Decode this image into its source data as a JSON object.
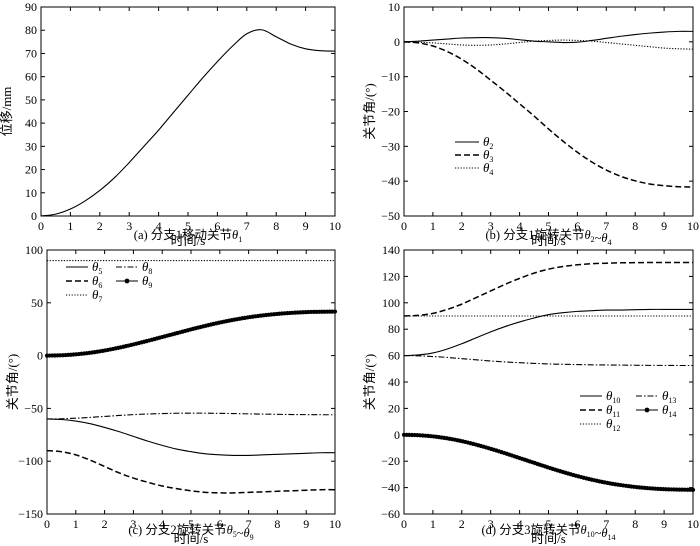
{
  "chart_data": [
    {
      "type": "line",
      "caption": "(a) 分支1移动关节θ1",
      "xlabel": "时间/s",
      "ylabel": "位移/mm",
      "xlim": [
        0,
        10
      ],
      "ylim": [
        0,
        90
      ],
      "xticks": [
        "0",
        "1",
        "2",
        "3",
        "4",
        "5",
        "6",
        "7",
        "8",
        "9",
        "10"
      ],
      "yticks": [
        "0",
        "10",
        "20",
        "30",
        "40",
        "50",
        "60",
        "70",
        "80",
        "90"
      ],
      "x": [
        0,
        0.5,
        1,
        1.5,
        2,
        2.5,
        3,
        3.5,
        4,
        4.5,
        5,
        5.5,
        6,
        6.5,
        7,
        7.5,
        8,
        8.5,
        9,
        9.5,
        10
      ],
      "series": [
        {
          "name": "θ1",
          "style": "solid",
          "values": [
            0,
            0.8,
            3,
            6.5,
            11,
            16.5,
            23,
            30,
            37,
            44.5,
            52,
            59.5,
            66.5,
            73,
            78.5,
            80.2,
            77.2,
            74,
            72,
            71.2,
            71
          ]
        }
      ]
    },
    {
      "type": "line",
      "caption": "(b) 分支1旋转关节θ2~θ4",
      "xlabel": "时间/s",
      "ylabel": "关节角/(°)",
      "xlim": [
        0,
        10
      ],
      "ylim": [
        -50,
        10
      ],
      "xticks": [
        "0",
        "1",
        "2",
        "3",
        "4",
        "5",
        "6",
        "7",
        "8",
        "9",
        "10"
      ],
      "yticks": [
        "-50",
        "-40",
        "-30",
        "-20",
        "-10",
        "0",
        "10"
      ],
      "legend": [
        {
          "sym": "θ",
          "sub": "2"
        },
        {
          "sym": "θ",
          "sub": "3"
        },
        {
          "sym": "θ",
          "sub": "4"
        }
      ],
      "x": [
        0,
        0.5,
        1,
        1.5,
        2,
        2.5,
        3,
        3.5,
        4,
        4.5,
        5,
        5.5,
        6,
        6.5,
        7,
        7.5,
        8,
        8.5,
        9,
        9.5,
        10
      ],
      "series": [
        {
          "name": "θ2",
          "style": "solid",
          "values": [
            0,
            0.2,
            0.5,
            0.8,
            1.1,
            1.2,
            1.2,
            1,
            0.6,
            0.2,
            0,
            -0.2,
            -0.1,
            0.4,
            1,
            1.6,
            2.1,
            2.5,
            2.8,
            3,
            3
          ]
        },
        {
          "name": "θ3",
          "style": "dashed",
          "values": [
            0,
            -0.3,
            -1.2,
            -2.8,
            -5,
            -7.8,
            -11,
            -14.3,
            -17.8,
            -21.3,
            -25,
            -28.5,
            -31.7,
            -34.5,
            -36.8,
            -38.6,
            -39.9,
            -40.8,
            -41.3,
            -41.6,
            -41.7
          ]
        },
        {
          "name": "θ4",
          "style": "dotted",
          "values": [
            0,
            -0.1,
            -0.3,
            -0.6,
            -0.9,
            -1,
            -0.9,
            -0.6,
            -0.2,
            0.2,
            0.4,
            0.5,
            0.4,
            0.2,
            -0.2,
            -0.6,
            -1,
            -1.4,
            -1.8,
            -2,
            -2.1
          ]
        }
      ]
    },
    {
      "type": "line",
      "caption": "(c) 分支2旋转关节θ5~θ9",
      "xlabel": "时间/s",
      "ylabel": "关节角/(°)",
      "xlim": [
        0,
        10
      ],
      "ylim": [
        -150,
        100
      ],
      "xticks": [
        "0",
        "1",
        "2",
        "3",
        "4",
        "5",
        "6",
        "7",
        "8",
        "9",
        "10"
      ],
      "yticks": [
        "-150",
        "-100",
        "-50",
        "0",
        "50",
        "100"
      ],
      "legend": [
        {
          "sym": "θ",
          "sub": "5"
        },
        {
          "sym": "θ",
          "sub": "8"
        },
        {
          "sym": "θ",
          "sub": "6"
        },
        {
          "sym": "θ",
          "sub": "9"
        },
        {
          "sym": "θ",
          "sub": "7"
        }
      ],
      "x": [
        0,
        0.5,
        1,
        1.5,
        2,
        2.5,
        3,
        3.5,
        4,
        4.5,
        5,
        5.5,
        6,
        6.5,
        7,
        7.5,
        8,
        8.5,
        9,
        9.5,
        10
      ],
      "series": [
        {
          "name": "θ5",
          "style": "solid",
          "values": [
            -60,
            -60.5,
            -62,
            -64.5,
            -68,
            -72,
            -76.5,
            -81,
            -85,
            -88.5,
            -91,
            -93,
            -94,
            -94.5,
            -94.5,
            -94,
            -93.5,
            -93,
            -92.5,
            -92,
            -92
          ]
        },
        {
          "name": "θ6",
          "style": "dashed",
          "values": [
            -90,
            -91,
            -94,
            -99,
            -105,
            -111,
            -116,
            -120,
            -123.5,
            -126,
            -128,
            -129.5,
            -130,
            -130,
            -129.5,
            -129,
            -128.5,
            -128,
            -127.5,
            -127,
            -127
          ]
        },
        {
          "name": "θ7",
          "style": "dotted",
          "values": [
            90,
            90,
            90,
            90,
            90,
            90,
            90,
            90,
            90,
            90,
            90,
            90,
            90,
            90,
            90,
            90,
            90,
            90,
            90,
            90,
            90
          ]
        },
        {
          "name": "θ8",
          "style": "dashdot",
          "values": [
            -60,
            -59.8,
            -59.3,
            -58.5,
            -57.6,
            -56.7,
            -55.9,
            -55.3,
            -54.9,
            -54.6,
            -54.5,
            -54.5,
            -54.7,
            -54.9,
            -55.2,
            -55.4,
            -55.6,
            -55.8,
            -55.9,
            -56,
            -56
          ]
        },
        {
          "name": "θ9",
          "style": "markers",
          "values": [
            0,
            0.3,
            1.2,
            2.7,
            4.8,
            7.5,
            10.6,
            14,
            17.6,
            21.2,
            24.8,
            28.2,
            31.3,
            34,
            36.3,
            38.1,
            39.5,
            40.5,
            41.2,
            41.5,
            41.7
          ]
        }
      ]
    },
    {
      "type": "line",
      "caption": "(d) 分支3旋转关节θ10~θ14",
      "xlabel": "时间/s",
      "ylabel": "关节角/(°)",
      "xlim": [
        0,
        10
      ],
      "ylim": [
        -60,
        140
      ],
      "xticks": [
        "0",
        "1",
        "2",
        "3",
        "4",
        "5",
        "6",
        "7",
        "8",
        "9",
        "10"
      ],
      "yticks": [
        "-60",
        "-40",
        "-20",
        "0",
        "20",
        "40",
        "60",
        "80",
        "100",
        "120",
        "140"
      ],
      "legend": [
        {
          "sym": "θ",
          "sub": "10"
        },
        {
          "sym": "θ",
          "sub": "13"
        },
        {
          "sym": "θ",
          "sub": "11"
        },
        {
          "sym": "θ",
          "sub": "14"
        },
        {
          "sym": "θ",
          "sub": "12"
        }
      ],
      "x": [
        0,
        0.5,
        1,
        1.5,
        2,
        2.5,
        3,
        3.5,
        4,
        4.5,
        5,
        5.5,
        6,
        6.5,
        7,
        7.5,
        8,
        8.5,
        9,
        9.5,
        10
      ],
      "series": [
        {
          "name": "θ10",
          "style": "solid",
          "values": [
            60,
            60.5,
            62,
            65,
            69,
            73.5,
            78,
            82,
            85.5,
            88.5,
            91,
            92.5,
            93.5,
            94,
            94.5,
            94.5,
            94.8,
            95,
            95,
            95,
            95
          ]
        },
        {
          "name": "θ11",
          "style": "dashed",
          "values": [
            90,
            90.5,
            92,
            95,
            99,
            104,
            109,
            114,
            118.5,
            122.5,
            125.5,
            127.5,
            128.8,
            129.6,
            130,
            130.3,
            130.4,
            130.5,
            130.5,
            130.5,
            130.5
          ]
        },
        {
          "name": "θ12",
          "style": "dotted",
          "values": [
            90,
            90,
            90,
            90,
            90,
            90,
            90,
            90,
            90,
            90,
            90,
            90,
            90,
            90,
            90,
            90,
            90,
            90,
            90,
            90,
            90
          ]
        },
        {
          "name": "θ13",
          "style": "dashdot",
          "values": [
            60,
            59.8,
            59.3,
            58.6,
            57.7,
            56.8,
            55.9,
            55.2,
            54.6,
            54.1,
            53.7,
            53.4,
            53.2,
            53,
            52.9,
            52.8,
            52.7,
            52.6,
            52.6,
            52.5,
            52.5
          ]
        },
        {
          "name": "θ14",
          "style": "markers",
          "values": [
            0,
            -0.3,
            -1.2,
            -2.7,
            -4.8,
            -7.5,
            -10.6,
            -14,
            -17.6,
            -21.2,
            -24.8,
            -28.2,
            -31.3,
            -34,
            -36.3,
            -38.1,
            -39.5,
            -40.5,
            -41.2,
            -41.5,
            -41.7
          ]
        }
      ]
    }
  ]
}
